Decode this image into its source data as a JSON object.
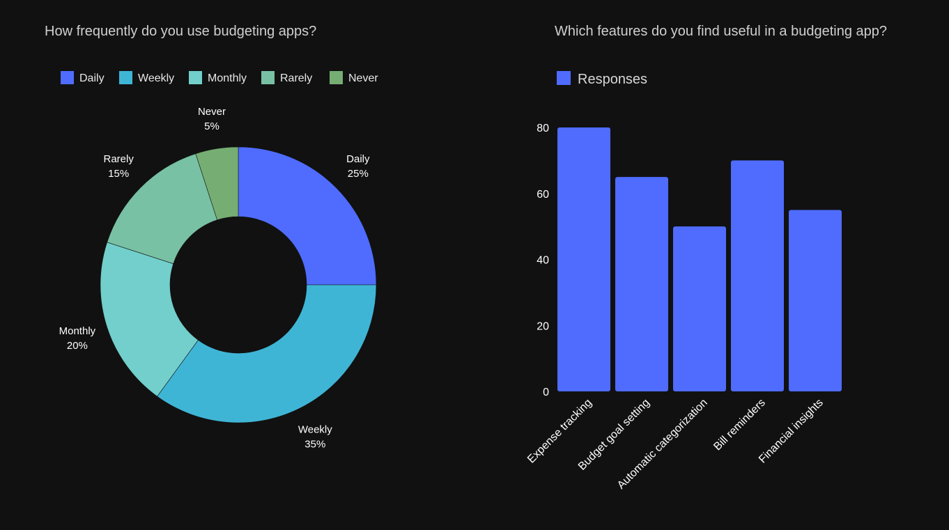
{
  "chart_data": [
    {
      "type": "pie",
      "variant": "donut",
      "title": "How frequently do you use budgeting apps?",
      "legend_position": "top-left",
      "categories": [
        "Daily",
        "Weekly",
        "Monthly",
        "Rarely",
        "Never"
      ],
      "values": [
        25,
        35,
        20,
        15,
        5
      ],
      "percent_labels": [
        "25%",
        "35%",
        "20%",
        "15%",
        "5%"
      ],
      "colors": [
        "#4f6cff",
        "#3fb5d6",
        "#72cfcb",
        "#78c1a4",
        "#76ad73"
      ]
    },
    {
      "type": "bar",
      "title": "Which features do you find useful in a budgeting app?",
      "legend_position": "top-left",
      "series": [
        {
          "name": "Responses",
          "color": "#4f6cff",
          "values": [
            80,
            65,
            50,
            70,
            55
          ]
        }
      ],
      "categories": [
        "Expense tracking",
        "Budget goal setting",
        "Automatic categorization",
        "Bill reminders",
        "Financial insights"
      ],
      "ylim": [
        0,
        80
      ],
      "yticks": [
        "0",
        "20",
        "40",
        "60",
        "80"
      ],
      "grid": false
    }
  ]
}
